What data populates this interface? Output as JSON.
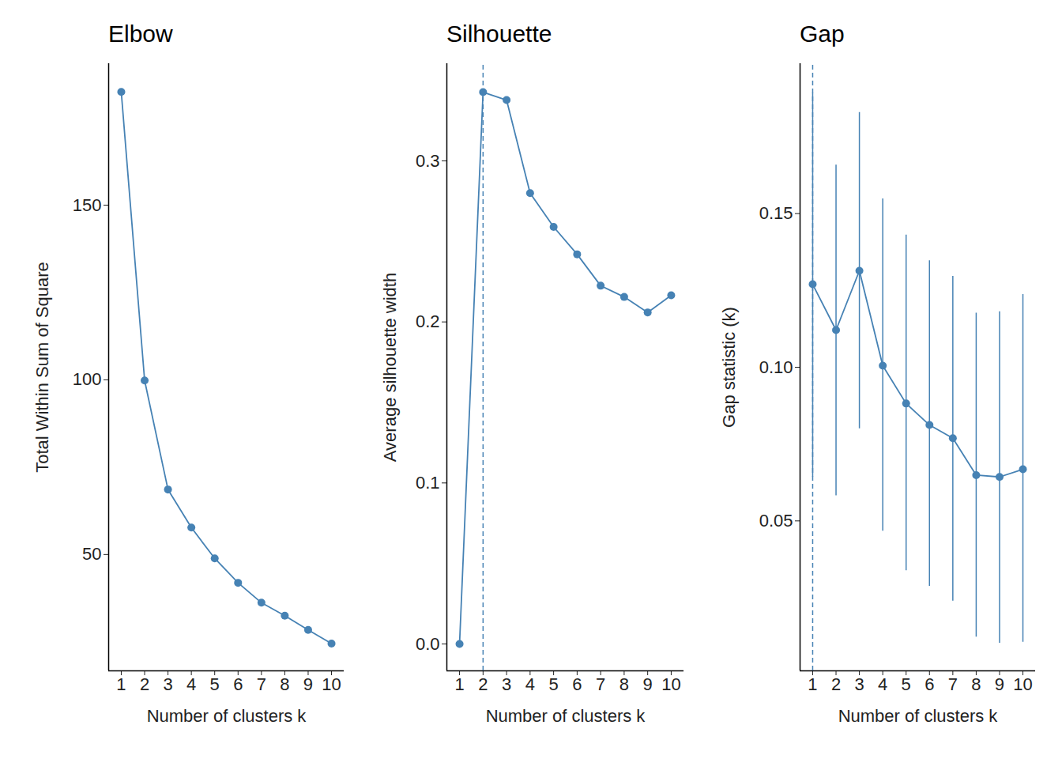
{
  "chart_data": [
    {
      "type": "line",
      "title": "Elbow",
      "x_label": "Number of clusters k",
      "y_label": "Total Within Sum of Square",
      "x": [
        1,
        2,
        3,
        4,
        5,
        6,
        7,
        8,
        9,
        10
      ],
      "values": [
        182.4,
        99.8,
        68.6,
        57.7,
        48.9,
        41.9,
        36.2,
        32.5,
        28.4,
        24.5
      ],
      "color": "#4682b4",
      "marker": "circle",
      "xlim": [
        0.46,
        10.54
      ],
      "xticks": [
        1,
        2,
        3,
        4,
        5,
        6,
        7,
        8,
        9,
        10
      ],
      "ylim": [
        16.7,
        190.5
      ],
      "yticks": [
        50,
        100,
        150
      ]
    },
    {
      "type": "line",
      "title": "Silhouette",
      "x_label": "Number of clusters k",
      "y_label": "Average silhouette width",
      "x": [
        1,
        2,
        3,
        4,
        5,
        6,
        7,
        8,
        9,
        10
      ],
      "values": [
        0,
        0.3427,
        0.3378,
        0.28,
        0.259,
        0.242,
        0.2225,
        0.2155,
        0.2059,
        0.2165
      ],
      "color": "#4682b4",
      "marker": "circle",
      "vline": 2,
      "xlim": [
        0.46,
        10.54
      ],
      "xticks": [
        1,
        2,
        3,
        4,
        5,
        6,
        7,
        8,
        9,
        10
      ],
      "ylim": [
        -0.0167,
        0.3604
      ],
      "yticks": [
        {
          "value": 0,
          "label": "0.0"
        },
        0.1,
        0.2,
        0.3
      ]
    },
    {
      "type": "line",
      "title": "Gap",
      "x_label": "Number of clusters k",
      "y_label": "Gap statistic (k)",
      "x": [
        1,
        2,
        3,
        4,
        5,
        6,
        7,
        8,
        9,
        10
      ],
      "values": [
        0.127,
        0.1121,
        0.1314,
        0.1005,
        0.0882,
        0.0812,
        0.0769,
        0.0649,
        0.0643,
        0.0668
      ],
      "lower": [
        0.0643,
        0.0582,
        0.08,
        0.0467,
        0.0338,
        0.0287,
        0.0239,
        0.0122,
        0.0102,
        0.0105
      ],
      "upper": [
        0.1892,
        0.1658,
        0.1829,
        0.1548,
        0.143,
        0.1347,
        0.1296,
        0.1176,
        0.1181,
        0.1237
      ],
      "color": "#4682b4",
      "marker": "circle",
      "vline": 1,
      "xlim": [
        0.46,
        10.54
      ],
      "xticks": [
        1,
        2,
        3,
        4,
        5,
        6,
        7,
        8,
        9,
        10
      ],
      "ylim": [
        0.0012,
        0.1988
      ],
      "yticks": [
        0.05,
        {
          "value": 0.1,
          "label": "0.10"
        },
        0.15
      ]
    }
  ]
}
